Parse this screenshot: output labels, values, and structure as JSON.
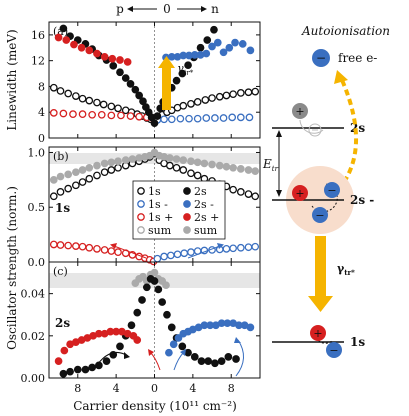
{
  "header": {
    "p_label": "p",
    "zero_label": "0",
    "n_label": "n",
    "p_color": "#d62020",
    "n_color": "#3a6fc0"
  },
  "x_axis": {
    "label": "Carrier density (10¹¹ cm⁻²)",
    "ticks": [
      "8",
      "4",
      "0",
      "4",
      "8"
    ]
  },
  "chart_data": [
    {
      "type": "scatter",
      "panel": "(a)",
      "ylabel": "Linewidth (meV)",
      "ylim": [
        0,
        18
      ],
      "yticks": [
        "0",
        "4",
        "8",
        "12",
        "16"
      ],
      "annotation": "γtr*",
      "series": [
        {
          "key": "s1",
          "marker": "open",
          "color": "#111111",
          "x": [
            -10.5,
            -9.8,
            -9,
            -8.2,
            -7.5,
            -6.8,
            -6,
            -5.3,
            -4.5,
            -3.8,
            -3,
            -2.4,
            -1.8,
            -1.3,
            -0.8,
            -0.4,
            0,
            0.4,
            0.8,
            1.3,
            1.8,
            2.4,
            3,
            3.8,
            4.5,
            5.3,
            6,
            6.8,
            7.5,
            8.2,
            9,
            9.8,
            10.5
          ],
          "y": [
            7.8,
            7.3,
            6.9,
            6.5,
            6.1,
            5.8,
            5.5,
            5.2,
            4.9,
            4.6,
            4.3,
            4,
            3.7,
            3.4,
            3.1,
            2.9,
            2.8,
            3.2,
            3.6,
            4,
            4.3,
            4.7,
            5,
            5.3,
            5.6,
            5.9,
            6.2,
            6.4,
            6.6,
            6.8,
            7,
            7.1,
            7.2
          ]
        },
        {
          "key": "s1p",
          "marker": "open",
          "color": "#d62020",
          "x": [
            -10.5,
            -9.5,
            -8.5,
            -7.5,
            -6.5,
            -5.5,
            -4.5,
            -3.5,
            -2.5,
            -1.6,
            -0.8,
            -0.2
          ],
          "y": [
            3.9,
            3.8,
            3.7,
            3.7,
            3.6,
            3.6,
            3.5,
            3.5,
            3.4,
            3.3,
            3.2,
            3.1
          ]
        },
        {
          "key": "s1n",
          "marker": "open",
          "color": "#3a6fc0",
          "x": [
            0.3,
            1,
            1.8,
            2.7,
            3.6,
            4.5,
            5.4,
            6.3,
            7.2,
            8.1,
            9,
            9.9
          ],
          "y": [
            2.8,
            2.9,
            2.9,
            3,
            3,
            3,
            3.1,
            3.1,
            3.1,
            3.2,
            3.2,
            3.2
          ]
        },
        {
          "key": "s2",
          "marker": "filled",
          "color": "#111111",
          "x": [
            -9.5,
            -8.8,
            -8,
            -7.2,
            -6.5,
            -5.8,
            -5,
            -4.3,
            -3.6,
            -3,
            -2.5,
            -2,
            -1.6,
            -1.2,
            -0.9,
            -0.6,
            -0.3,
            0,
            0.3,
            0.6,
            0.9,
            1.3,
            1.8,
            2.3,
            2.9,
            3.5,
            4.1,
            4.8,
            5.5,
            6.2
          ],
          "y": [
            17,
            15.8,
            15.2,
            14.6,
            13.8,
            12.8,
            12.1,
            11.2,
            10.2,
            9.3,
            8.4,
            7.5,
            6.6,
            5.7,
            4.8,
            4,
            3.2,
            2.3,
            3.4,
            4.6,
            5.6,
            6.7,
            7.8,
            8.9,
            10,
            11.3,
            12.5,
            14,
            15.2,
            16.8
          ]
        },
        {
          "key": "s2p",
          "marker": "filled",
          "color": "#d62020",
          "x": [
            -10,
            -9.2,
            -8.4,
            -7.6,
            -6.8,
            -6,
            -5.2,
            -4.4,
            -3.6,
            -2.8
          ],
          "y": [
            15.6,
            15.2,
            14.5,
            14,
            13.6,
            13.1,
            12.6,
            12.3,
            12.1,
            11.8
          ]
        },
        {
          "key": "s2n",
          "marker": "filled",
          "color": "#3a6fc0",
          "x": [
            1.2,
            1.8,
            2.4,
            3,
            3.6,
            4.2,
            4.8,
            5.4,
            6,
            6.6,
            7.2,
            7.8,
            8.4,
            9.2,
            10
          ],
          "y": [
            12.5,
            12.6,
            12.6,
            12.8,
            12.8,
            12.9,
            12.9,
            13.1,
            14.2,
            14.8,
            13.3,
            14,
            14.8,
            14.6,
            13.6
          ]
        }
      ]
    },
    {
      "type": "scatter",
      "panel": "(b)",
      "ylabel": "",
      "ylim": [
        0,
        1.05
      ],
      "yticks": [
        "0.0",
        "0.5",
        "1.0"
      ],
      "panel_label": "1s",
      "legend": {
        "placement": "center-right",
        "entries": [
          {
            "label": "1s",
            "marker": "open",
            "color": "#111111"
          },
          {
            "label": "2s",
            "marker": "filled",
            "color": "#111111"
          },
          {
            "label": "1s -",
            "marker": "open",
            "color": "#3a6fc0"
          },
          {
            "label": "2s -",
            "marker": "filled",
            "color": "#3a6fc0"
          },
          {
            "label": "1s +",
            "marker": "open",
            "color": "#d62020"
          },
          {
            "label": "2s +",
            "marker": "filled",
            "color": "#d62020"
          },
          {
            "label": "sum",
            "marker": "open",
            "color": "#aaaaaa"
          },
          {
            "label": "sum",
            "marker": "filled",
            "color": "#aaaaaa"
          }
        ]
      },
      "series": [
        {
          "key": "s1",
          "marker": "open",
          "color": "#111111",
          "x": [
            -10.5,
            -9.8,
            -9,
            -8.2,
            -7.5,
            -6.8,
            -6,
            -5.2,
            -4.5,
            -3.8,
            -3,
            -2.3,
            -1.6,
            -1,
            -0.5,
            0,
            0.5,
            1,
            1.6,
            2.3,
            3,
            3.8,
            4.5,
            5.2,
            6,
            6.8,
            7.5,
            8.2,
            9,
            9.8,
            10.5
          ],
          "y": [
            0.6,
            0.64,
            0.67,
            0.7,
            0.73,
            0.76,
            0.79,
            0.82,
            0.84,
            0.86,
            0.88,
            0.9,
            0.92,
            0.94,
            0.96,
            0.99,
            0.93,
            0.9,
            0.88,
            0.86,
            0.84,
            0.81,
            0.79,
            0.76,
            0.74,
            0.71,
            0.69,
            0.66,
            0.64,
            0.62,
            0.6
          ]
        },
        {
          "key": "sum",
          "marker": "filled",
          "color": "#aaaaaa",
          "x": [
            -10.5,
            -9.8,
            -9,
            -8.2,
            -7.5,
            -6.8,
            -6,
            -5.2,
            -4.5,
            -3.8,
            -3,
            -2.3,
            -1.6,
            -1,
            -0.5,
            0,
            0.5,
            1,
            1.6,
            2.3,
            3,
            3.8,
            4.5,
            5.2,
            6,
            6.8,
            7.5,
            8.2,
            9,
            9.8,
            10.5
          ],
          "y": [
            0.75,
            0.78,
            0.8,
            0.82,
            0.84,
            0.86,
            0.88,
            0.9,
            0.91,
            0.92,
            0.93,
            0.94,
            0.95,
            0.96,
            0.97,
            1.0,
            0.97,
            0.96,
            0.95,
            0.94,
            0.93,
            0.92,
            0.91,
            0.9,
            0.89,
            0.88,
            0.87,
            0.86,
            0.85,
            0.84,
            0.83
          ]
        },
        {
          "key": "s1p",
          "marker": "open",
          "color": "#d62020",
          "x": [
            -10.5,
            -9.8,
            -9,
            -8.2,
            -7.5,
            -6.8,
            -6,
            -5.2,
            -4.5,
            -3.8,
            -3,
            -2.3,
            -1.6,
            -1,
            -0.5,
            -0.1
          ],
          "y": [
            0.16,
            0.155,
            0.15,
            0.145,
            0.14,
            0.13,
            0.12,
            0.11,
            0.1,
            0.09,
            0.08,
            0.065,
            0.05,
            0.035,
            0.02,
            0.005
          ]
        },
        {
          "key": "s1n",
          "marker": "open",
          "color": "#3a6fc0",
          "x": [
            0.3,
            1,
            1.7,
            2.4,
            3.1,
            3.8,
            4.5,
            5.2,
            6,
            6.8,
            7.5,
            8.2,
            9,
            9.8,
            10.5
          ],
          "y": [
            0.03,
            0.05,
            0.06,
            0.07,
            0.08,
            0.09,
            0.1,
            0.105,
            0.11,
            0.115,
            0.12,
            0.125,
            0.13,
            0.135,
            0.14
          ]
        }
      ]
    },
    {
      "type": "scatter",
      "panel": "(c)",
      "ylabel": "Oscillator strength (norm.)",
      "ylim": [
        0,
        0.055
      ],
      "yticks": [
        "0.00",
        "0.02",
        "0.04"
      ],
      "panel_label": "2s",
      "series": [
        {
          "key": "sum",
          "marker": "filled",
          "color": "#aaaaaa",
          "x": [
            -2,
            -1.6,
            -1.2,
            -0.8,
            -0.4,
            0,
            0.4,
            0.8,
            1.2
          ],
          "y": [
            0.045,
            0.047,
            0.048,
            0.046,
            0.049,
            0.05,
            0.047,
            0.046,
            0.044
          ]
        },
        {
          "key": "s2",
          "marker": "filled",
          "color": "#111111",
          "x": [
            -9.5,
            -8.8,
            -8,
            -7.2,
            -6.5,
            -5.8,
            -5,
            -4.3,
            -3.6,
            -3,
            -2.4,
            -1.8,
            -1.3,
            -0.8,
            -0.4,
            0,
            0.4,
            0.8,
            1.3,
            1.8,
            2.3,
            2.9,
            3.5,
            4.2,
            4.9,
            5.6,
            6.3,
            7,
            7.7,
            8.5
          ],
          "y": [
            0.002,
            0.003,
            0.004,
            0.004,
            0.005,
            0.006,
            0.008,
            0.011,
            0.015,
            0.02,
            0.025,
            0.031,
            0.037,
            0.043,
            0.047,
            0.046,
            0.042,
            0.036,
            0.03,
            0.024,
            0.019,
            0.015,
            0.012,
            0.01,
            0.008,
            0.008,
            0.007,
            0.008,
            0.01,
            0.009
          ]
        },
        {
          "key": "s2p",
          "marker": "filled",
          "color": "#d62020",
          "x": [
            -10,
            -9.4,
            -8.8,
            -8.2,
            -7.6,
            -7,
            -6.4,
            -5.8,
            -5.2,
            -4.6,
            -4,
            -3.4,
            -2.8,
            -2.2,
            -1.8
          ],
          "y": [
            0.008,
            0.013,
            0.016,
            0.017,
            0.018,
            0.019,
            0.02,
            0.021,
            0.021,
            0.022,
            0.022,
            0.022,
            0.021,
            0.02,
            0.018
          ]
        },
        {
          "key": "s2n",
          "marker": "filled",
          "color": "#3a6fc0",
          "x": [
            1.5,
            2,
            2.5,
            3,
            3.5,
            4,
            4.6,
            5.2,
            5.8,
            6.4,
            7,
            7.6,
            8.2,
            8.8,
            9.4,
            10
          ],
          "y": [
            0.012,
            0.016,
            0.019,
            0.021,
            0.022,
            0.023,
            0.024,
            0.025,
            0.025,
            0.025,
            0.026,
            0.026,
            0.026,
            0.025,
            0.025,
            0.024
          ]
        }
      ]
    }
  ],
  "diagram": {
    "title": "Autoionisation",
    "free_label": "free e-",
    "level_2s": "2s",
    "level_2s_minus": "2s -",
    "level_1s": "1s",
    "energy_label": "E",
    "energy_sub": "tr",
    "gamma_label": "γ",
    "gamma_sub": "tr*",
    "minus_sign": "−",
    "plus_sign": "+"
  }
}
